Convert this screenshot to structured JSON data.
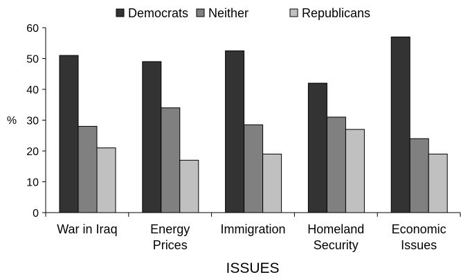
{
  "chart_data": {
    "type": "bar",
    "xlabel": "ISSUES",
    "ylabel": "%",
    "ylim": [
      0,
      60
    ],
    "yticks": [
      0,
      10,
      20,
      30,
      40,
      50,
      60
    ],
    "grid": false,
    "legend_position": "top",
    "categories": [
      [
        "War in Iraq"
      ],
      [
        "Energy",
        "Prices"
      ],
      [
        "Immigration"
      ],
      [
        "Homeland",
        "Security"
      ],
      [
        "Economic",
        "Issues"
      ]
    ],
    "series": [
      {
        "name": "Democrats",
        "color": "#333333",
        "values": [
          51,
          49,
          52.5,
          42,
          57
        ]
      },
      {
        "name": "Neither",
        "color": "#808080",
        "values": [
          28,
          34,
          28.5,
          31,
          24
        ]
      },
      {
        "name": "Republicans",
        "color": "#c0c0c0",
        "values": [
          21,
          17,
          19,
          27,
          19
        ]
      }
    ]
  }
}
